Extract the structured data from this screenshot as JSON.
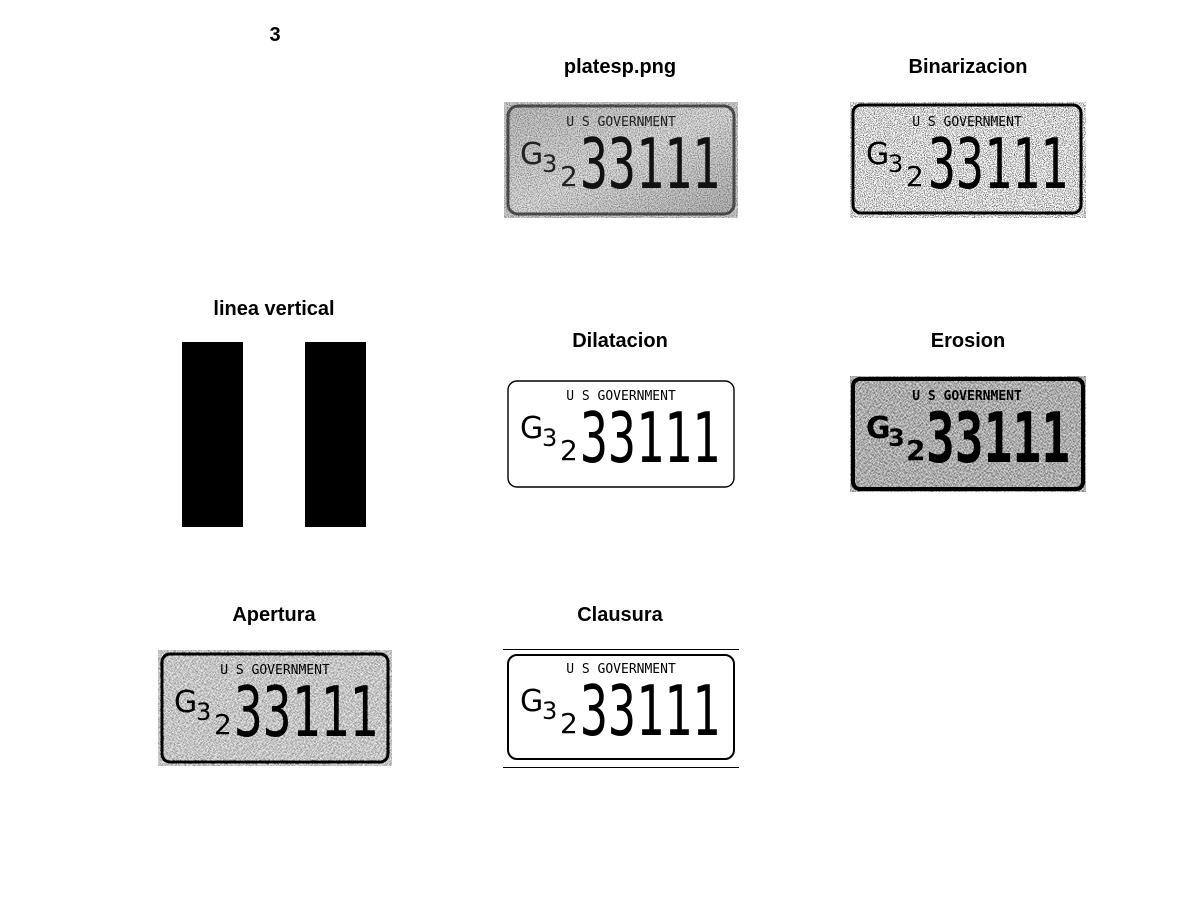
{
  "figure": {
    "number_label": "3",
    "panels": [
      {
        "id": "original",
        "title": "platesp.png",
        "plate_top": "U S GOVERNMENT",
        "plate_main": "33111",
        "plate_prefix": "G",
        "plate_prefix_2": "3",
        "plate_prefix_sub": "2"
      },
      {
        "id": "binarizacion",
        "title": "Binarizacion",
        "plate_top": "U S GOVERNMENT",
        "plate_main": "33111",
        "plate_prefix": "G",
        "plate_prefix_2": "3",
        "plate_prefix_sub": "2"
      },
      {
        "id": "linea",
        "title": "linea vertical"
      },
      {
        "id": "dilatacion",
        "title": "Dilatacion",
        "plate_top": "U S GOVERNMENT",
        "plate_main": "33111",
        "plate_prefix": "G",
        "plate_prefix_2": "3",
        "plate_prefix_sub": "2"
      },
      {
        "id": "erosion",
        "title": "Erosion",
        "plate_top": "U S GOVERNMENT",
        "plate_main": "33111",
        "plate_prefix": "G",
        "plate_prefix_2": "3",
        "plate_prefix_sub": "2"
      },
      {
        "id": "apertura",
        "title": "Apertura",
        "plate_top": "U S GOVERNMENT",
        "plate_main": "33111",
        "plate_prefix": "G",
        "plate_prefix_2": "3",
        "plate_prefix_sub": "2"
      },
      {
        "id": "clausura",
        "title": "Clausura",
        "plate_top": "U S GOVERNMENT",
        "plate_main": "33111",
        "plate_prefix": "G",
        "plate_prefix_2": "3",
        "plate_prefix_sub": "2"
      }
    ]
  }
}
